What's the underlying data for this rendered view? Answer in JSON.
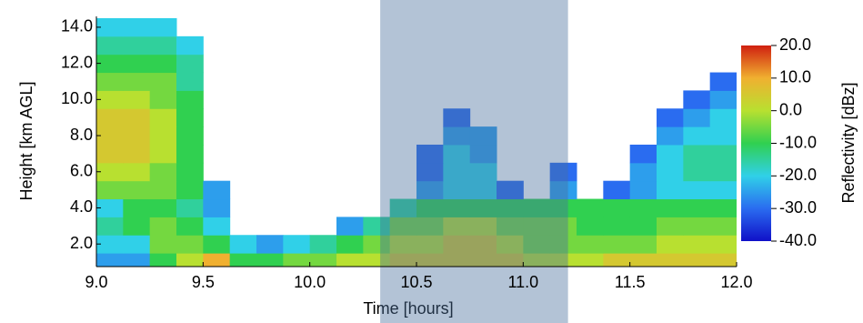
{
  "chart_data": {
    "type": "heatmap",
    "xlabel": "Time [hours]",
    "ylabel": "Height [km AGL]",
    "colorbar_label": "Reflectivity [dBz]",
    "xlim": [
      9.0,
      12.0
    ],
    "xticks": [
      {
        "value": 9.0,
        "label": "9.0"
      },
      {
        "value": 9.5,
        "label": "9.5"
      },
      {
        "value": 10.0,
        "label": "10.0"
      },
      {
        "value": 10.5,
        "label": "10.5"
      },
      {
        "value": 11.0,
        "label": "11.0"
      },
      {
        "value": 11.5,
        "label": "11.5"
      },
      {
        "value": 12.0,
        "label": "12.0"
      }
    ],
    "ylim": [
      0.75,
      14.6
    ],
    "yticks": [
      {
        "value": 2,
        "label": "2.0"
      },
      {
        "value": 4,
        "label": "4.0"
      },
      {
        "value": 6,
        "label": "6.0"
      },
      {
        "value": 8,
        "label": "8.0"
      },
      {
        "value": 10,
        "label": "10.0"
      },
      {
        "value": 12,
        "label": "12.0"
      },
      {
        "value": 14,
        "label": "14.0"
      }
    ],
    "zlim": [
      -40,
      20
    ],
    "zticks": [
      {
        "value": 20,
        "label": "20.0"
      },
      {
        "value": 10,
        "label": "10.0"
      },
      {
        "value": 0,
        "label": "0.0"
      },
      {
        "value": -10,
        "label": "-10.0"
      },
      {
        "value": -20,
        "label": "-20.0"
      },
      {
        "value": -30,
        "label": "-30.0"
      },
      {
        "value": -40,
        "label": "-40.0"
      }
    ],
    "colormap": [
      "#1010c8",
      "#2a6cf0",
      "#30d0e8",
      "#30d050",
      "#b8e030",
      "#f0b030",
      "#d02010"
    ],
    "highlight": {
      "x0": 10.33,
      "x1": 11.21,
      "color": "#4a6f9e"
    },
    "xbins": [
      9.0,
      9.125,
      9.25,
      9.375,
      9.5,
      9.625,
      9.75,
      9.875,
      10.0,
      10.125,
      10.25,
      10.375,
      10.5,
      10.625,
      10.75,
      10.875,
      11.0,
      11.125,
      11.25,
      11.375,
      11.5,
      11.625,
      11.75,
      11.875,
      12.0
    ],
    "ybins": [
      0.5,
      1.5,
      2.5,
      3.5,
      4.5,
      5.5,
      6.5,
      7.5,
      8.5,
      9.5,
      10.5,
      11.5,
      12.5,
      13.5,
      14.5
    ],
    "z": [
      [
        -25,
        -25,
        -10,
        0,
        10,
        -10,
        -10,
        -5,
        -5,
        0,
        0,
        5,
        5,
        5,
        5,
        5,
        0,
        0,
        0,
        5,
        5,
        5,
        5,
        5
      ],
      [
        -20,
        -20,
        -5,
        -5,
        -10,
        -20,
        -25,
        -20,
        -15,
        -10,
        -5,
        0,
        0,
        5,
        5,
        0,
        -5,
        -5,
        -5,
        -5,
        -5,
        0,
        0,
        0
      ],
      [
        -15,
        -10,
        -5,
        -10,
        -20,
        null,
        null,
        null,
        null,
        -25,
        -15,
        -5,
        -5,
        0,
        0,
        -5,
        -5,
        -5,
        -10,
        -10,
        -10,
        -5,
        -5,
        -5
      ],
      [
        -20,
        -10,
        -10,
        -15,
        -25,
        null,
        null,
        null,
        null,
        null,
        null,
        -15,
        -10,
        -10,
        -10,
        -10,
        -10,
        -10,
        -10,
        -10,
        -10,
        -10,
        -10,
        -10
      ],
      [
        -5,
        -5,
        -5,
        -10,
        -25,
        null,
        null,
        null,
        null,
        null,
        null,
        null,
        -25,
        -20,
        -20,
        -30,
        null,
        -25,
        null,
        -30,
        -25,
        -20,
        -20,
        -20
      ],
      [
        0,
        0,
        -5,
        -10,
        null,
        null,
        null,
        null,
        null,
        null,
        null,
        null,
        -30,
        -20,
        -20,
        null,
        null,
        -30,
        null,
        null,
        -25,
        -20,
        -15,
        -15
      ],
      [
        5,
        5,
        0,
        -10,
        null,
        null,
        null,
        null,
        null,
        null,
        null,
        null,
        -30,
        -20,
        -25,
        null,
        null,
        null,
        null,
        null,
        -30,
        -20,
        -15,
        -15
      ],
      [
        5,
        5,
        0,
        -10,
        null,
        null,
        null,
        null,
        null,
        null,
        null,
        null,
        null,
        -25,
        -25,
        null,
        null,
        null,
        null,
        null,
        null,
        -25,
        -20,
        -20
      ],
      [
        5,
        5,
        0,
        -10,
        null,
        null,
        null,
        null,
        null,
        null,
        null,
        null,
        null,
        -30,
        null,
        null,
        null,
        null,
        null,
        null,
        null,
        -30,
        -25,
        -20
      ],
      [
        0,
        0,
        -5,
        -10,
        null,
        null,
        null,
        null,
        null,
        null,
        null,
        null,
        null,
        null,
        null,
        null,
        null,
        null,
        null,
        null,
        null,
        null,
        -30,
        -25
      ],
      [
        -5,
        -5,
        -5,
        -15,
        null,
        null,
        null,
        null,
        null,
        null,
        null,
        null,
        null,
        null,
        null,
        null,
        null,
        null,
        null,
        null,
        null,
        null,
        null,
        -30
      ],
      [
        -10,
        -10,
        -10,
        -15,
        null,
        null,
        null,
        null,
        null,
        null,
        null,
        null,
        null,
        null,
        null,
        null,
        null,
        null,
        null,
        null,
        null,
        null,
        null,
        null
      ],
      [
        -15,
        -15,
        -15,
        -20,
        null,
        null,
        null,
        null,
        null,
        null,
        null,
        null,
        null,
        null,
        null,
        null,
        null,
        null,
        null,
        null,
        null,
        null,
        null,
        null
      ],
      [
        -20,
        -20,
        -20,
        null,
        null,
        null,
        null,
        null,
        null,
        null,
        null,
        null,
        null,
        null,
        null,
        null,
        null,
        null,
        null,
        null,
        null,
        null,
        null,
        null
      ]
    ]
  }
}
